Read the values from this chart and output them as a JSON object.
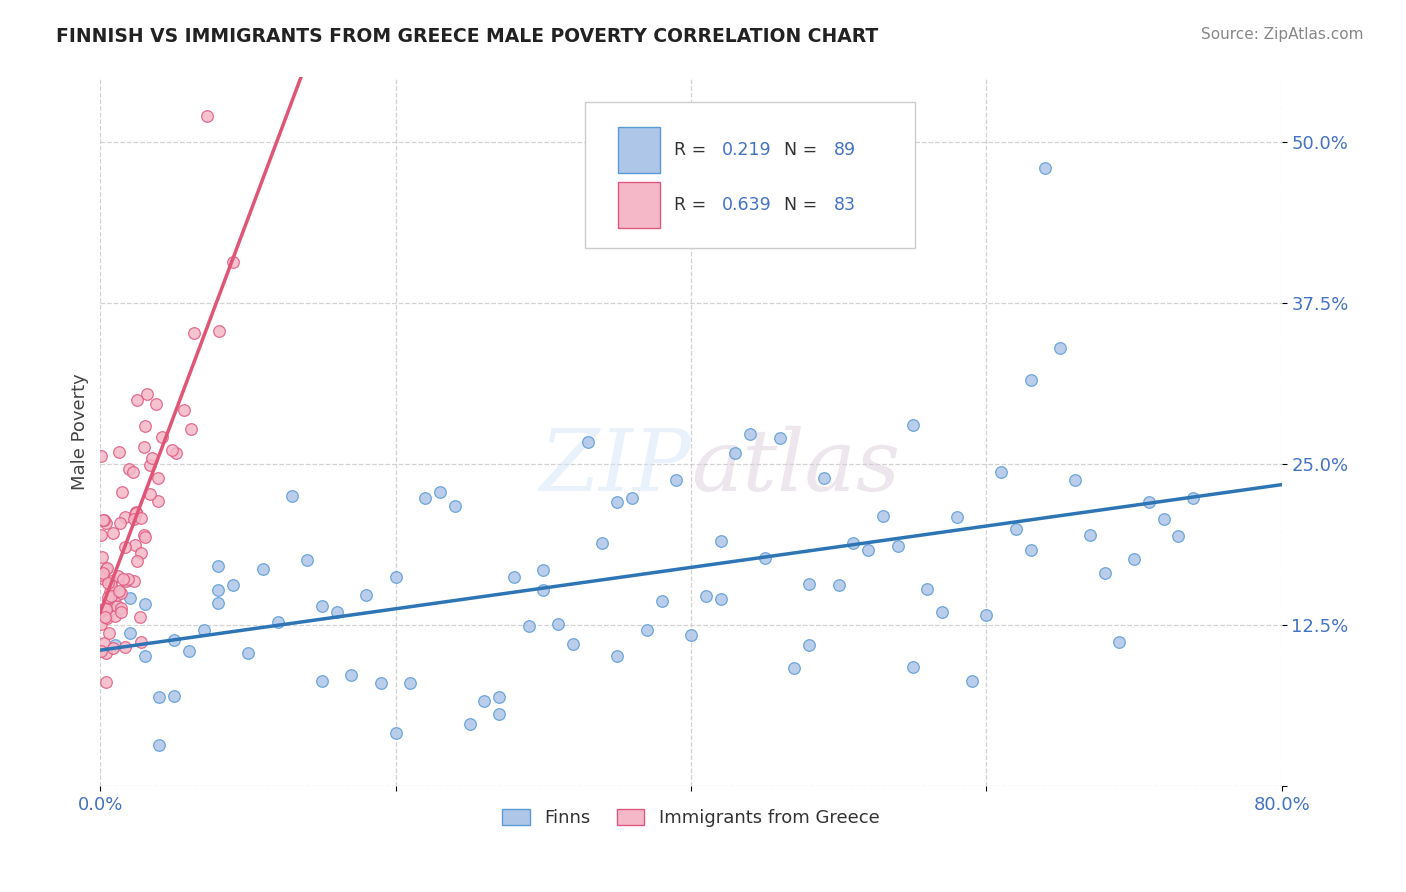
{
  "title": "FINNISH VS IMMIGRANTS FROM GREECE MALE POVERTY CORRELATION CHART",
  "source": "Source: ZipAtlas.com",
  "ylabel": "Male Poverty",
  "xlim": [
    0.0,
    0.8
  ],
  "ylim": [
    0.0,
    0.55
  ],
  "finn_color": "#aec6e8",
  "finn_edge_color": "#5b9bd5",
  "greece_color": "#f4b8c8",
  "greece_edge_color": "#e05880",
  "finn_line_color": "#2e75b6",
  "greece_line_color": "#e05575",
  "finn_R": 0.219,
  "finn_N": 89,
  "greece_R": 0.639,
  "greece_N": 83,
  "watermark": "ZIPatlas",
  "background_color": "#ffffff",
  "grid_color": "#c8c8c8",
  "ytick_color": "#4472c4",
  "xtick_color": "#4472c4"
}
